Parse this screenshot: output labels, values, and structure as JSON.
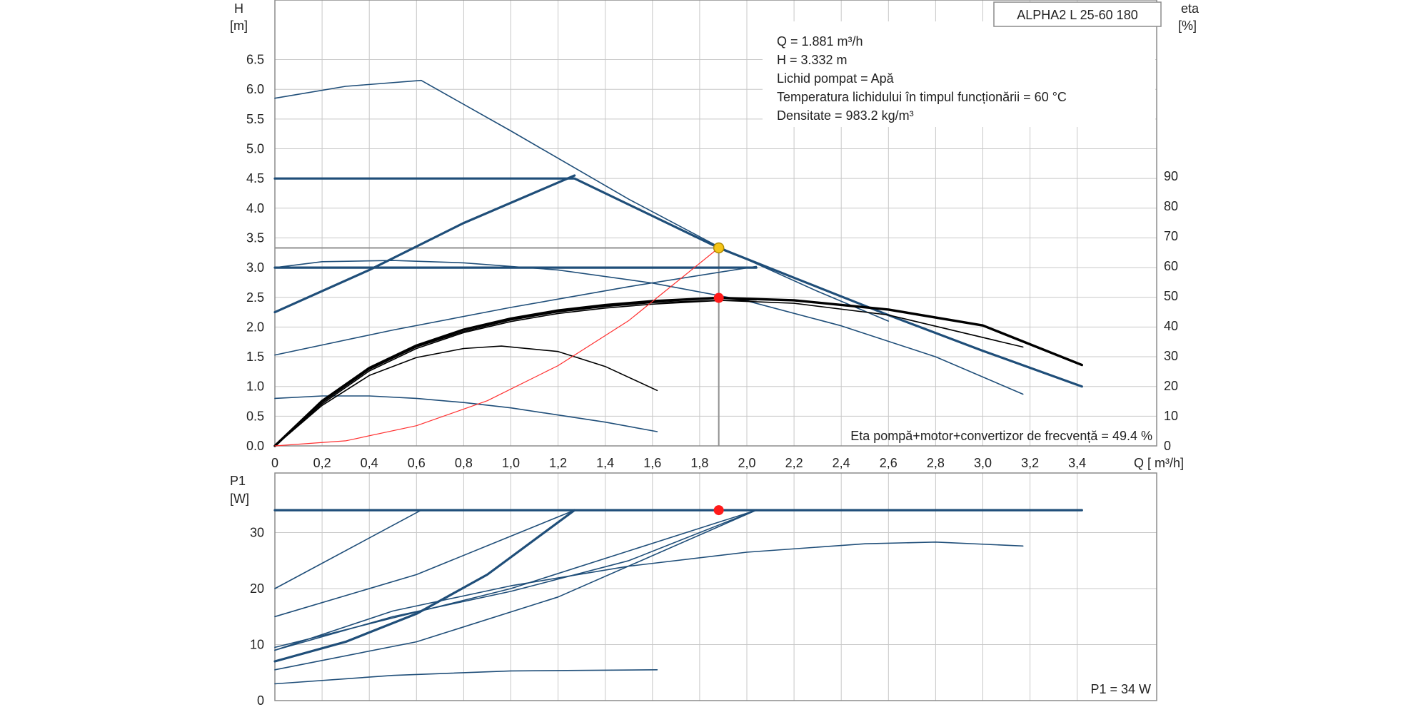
{
  "colors": {
    "grid": "#c8c8c8",
    "frame": "#8c8c8c",
    "curve": "#1f4e79",
    "eta": "#000000",
    "system": "#ff3030",
    "duty_marker": "#f5c518",
    "eta_marker": "#ff1a1a",
    "guide": "#909090"
  },
  "chart_data": [
    {
      "type": "line",
      "panel": "head",
      "model_label": "ALPHA2 L 25-60 180",
      "y_axis_label": "H",
      "y_axis_unit": "[m]",
      "y2_axis_label": "eta",
      "y2_axis_unit": "[%]",
      "x_axis_label": "Q [ m³/h]",
      "x_ticks": [
        "0",
        "0,2",
        "0,4",
        "0,6",
        "0,8",
        "1,0",
        "1,2",
        "1,4",
        "1,6",
        "1,8",
        "2,0",
        "2,2",
        "2,4",
        "2,6",
        "2,8",
        "3,0",
        "3,2",
        "3,4"
      ],
      "y_ticks": [
        "0.0",
        "0.5",
        "1.0",
        "1.5",
        "2.0",
        "2.5",
        "3.0",
        "3.5",
        "4.0",
        "4.5",
        "5.0",
        "5.5",
        "6.0",
        "6.5"
      ],
      "y2_ticks": [
        "0",
        "10",
        "20",
        "30",
        "40",
        "50",
        "60",
        "70",
        "80",
        "90"
      ],
      "xlim": [
        0,
        3.7
      ],
      "ylim": [
        0,
        7.5
      ],
      "y2lim": [
        0,
        100
      ],
      "grid": true,
      "info_lines": [
        "Q = 1.881  m³/h",
        "H = 3.332  m",
        "Lichid pompat = Apă",
        " Temperatura lichidului în timpul funcționării = 60  °C",
        "Densitate = 983.2  kg/m³"
      ],
      "efficiency_label": "Eta pompă+motor+convertizor de frecvență = 49.4 %",
      "series": [
        {
          "kind": "head",
          "weight": "bold",
          "x": [
            0,
            1.27,
            1.881,
            2.2,
            2.6,
            3.0,
            3.42
          ],
          "y": [
            4.5,
            4.5,
            3.332,
            2.83,
            2.2,
            1.6,
            1.0
          ]
        },
        {
          "kind": "head",
          "weight": "bold",
          "x": [
            0,
            0.4,
            0.8,
            1.27
          ],
          "y": [
            2.25,
            2.96,
            3.75,
            4.55
          ]
        },
        {
          "kind": "head",
          "weight": "bold",
          "x": [
            0,
            2.04
          ],
          "y": [
            3.0,
            3.0
          ]
        },
        {
          "kind": "head",
          "weight": "thin",
          "x": [
            0,
            0.3,
            0.62,
            1.0,
            1.5,
            1.881,
            2.3,
            2.6
          ],
          "y": [
            5.85,
            6.05,
            6.15,
            5.3,
            4.15,
            3.35,
            2.6,
            2.1
          ]
        },
        {
          "kind": "head",
          "weight": "thin",
          "x": [
            0,
            0.2,
            0.5,
            0.8,
            1.2,
            1.6,
            2.0,
            2.4,
            2.8,
            3.17
          ],
          "y": [
            3.0,
            3.1,
            3.12,
            3.08,
            2.96,
            2.74,
            2.44,
            2.02,
            1.5,
            0.87
          ]
        },
        {
          "kind": "head",
          "weight": "thin",
          "x": [
            0,
            0.5,
            1.0,
            1.5,
            2.04
          ],
          "y": [
            1.53,
            1.95,
            2.33,
            2.68,
            3.02
          ]
        },
        {
          "kind": "head",
          "weight": "thin",
          "x": [
            0,
            0.2,
            0.4,
            0.6,
            0.8,
            1.0,
            1.2,
            1.4,
            1.62
          ],
          "y": [
            0.8,
            0.84,
            0.84,
            0.8,
            0.73,
            0.64,
            0.52,
            0.4,
            0.24
          ]
        },
        {
          "kind": "efficiency",
          "weight": "bold",
          "x": [
            0,
            0.2,
            0.4,
            0.6,
            0.8,
            1.0,
            1.2,
            1.4,
            1.6,
            1.881,
            2.2,
            2.6,
            3.0,
            3.42
          ],
          "y": [
            0,
            15,
            26,
            33.5,
            38.8,
            42.5,
            45.2,
            47.0,
            48.3,
            49.4,
            48.6,
            45.5,
            40.2,
            27.0
          ]
        },
        {
          "kind": "efficiency",
          "weight": "thin",
          "x": [
            0,
            0.2,
            0.4,
            0.6,
            0.8,
            1.0,
            1.2,
            1.4,
            1.6,
            1.881,
            2.2,
            2.6,
            3.17
          ],
          "y": [
            0,
            14.5,
            25.5,
            33,
            38.2,
            42,
            44.7,
            46.5,
            47.8,
            48.6,
            47.6,
            43.7,
            33
          ]
        },
        {
          "kind": "efficiency",
          "weight": "thin",
          "x": [
            0,
            0.2,
            0.4,
            0.6,
            0.8,
            1.0,
            1.2,
            1.4,
            1.6,
            1.881,
            2.04
          ],
          "y": [
            0,
            14,
            25,
            32.5,
            37.8,
            41.5,
            44.2,
            46,
            47.3,
            48.5,
            48.7
          ]
        },
        {
          "kind": "efficiency",
          "weight": "thin",
          "x": [
            0,
            0.2,
            0.4,
            0.6,
            0.8,
            0.96,
            1.2,
            1.4,
            1.62
          ],
          "y": [
            0,
            13.5,
            23.5,
            29.5,
            32.5,
            33.3,
            31.5,
            26.5,
            18.5
          ]
        },
        {
          "kind": "system",
          "x": [
            0,
            0.3,
            0.6,
            0.9,
            1.2,
            1.5,
            1.881
          ],
          "y": [
            0,
            0.085,
            0.34,
            0.76,
            1.35,
            2.11,
            3.332
          ]
        }
      ],
      "duty_point": {
        "q": 1.881,
        "h": 3.332
      },
      "efficiency_point": {
        "q": 1.881,
        "eta": 49.4
      }
    },
    {
      "type": "line",
      "panel": "power",
      "y_axis_label": "P1",
      "y_axis_unit": "[W]",
      "y_ticks": [
        "0",
        "10",
        "20",
        "30"
      ],
      "xlim": [
        0,
        3.7
      ],
      "ylim": [
        0,
        38
      ],
      "grid": true,
      "power_label": "P1 = 34 W",
      "series": [
        {
          "weight": "bold",
          "x": [
            0,
            1.27,
            3.42
          ],
          "y": [
            34,
            34,
            34
          ]
        },
        {
          "weight": "bold",
          "x": [
            0,
            0.3,
            0.6,
            0.9,
            1.27
          ],
          "y": [
            7,
            10.5,
            15.5,
            22.5,
            34
          ]
        },
        {
          "weight": "thin",
          "x": [
            0,
            0.62,
            1.27
          ],
          "y": [
            20,
            34,
            34
          ]
        },
        {
          "weight": "thin",
          "x": [
            0,
            0.6,
            1.27
          ],
          "y": [
            15,
            22.5,
            34
          ]
        },
        {
          "weight": "thin",
          "x": [
            0,
            1.0,
            2.04
          ],
          "y": [
            9.5,
            20,
            34
          ]
        },
        {
          "weight": "thin",
          "x": [
            0,
            0.6,
            1.2,
            2.04
          ],
          "y": [
            5.5,
            10.5,
            18.5,
            34
          ]
        },
        {
          "weight": "thin",
          "x": [
            0,
            0.5,
            1.0,
            1.5,
            2.04
          ],
          "y": [
            9,
            15,
            19.5,
            25,
            34
          ]
        },
        {
          "weight": "thin",
          "x": [
            0,
            0.5,
            1.0,
            1.5,
            2.0,
            2.5,
            2.8,
            3.17
          ],
          "y": [
            9,
            16,
            20.5,
            24,
            26.5,
            28,
            28.3,
            27.6
          ]
        },
        {
          "weight": "thin",
          "x": [
            0,
            0.5,
            1.0,
            1.62
          ],
          "y": [
            3,
            4.5,
            5.3,
            5.5
          ]
        }
      ],
      "operating_point": {
        "q": 1.881,
        "p": 34
      }
    }
  ]
}
